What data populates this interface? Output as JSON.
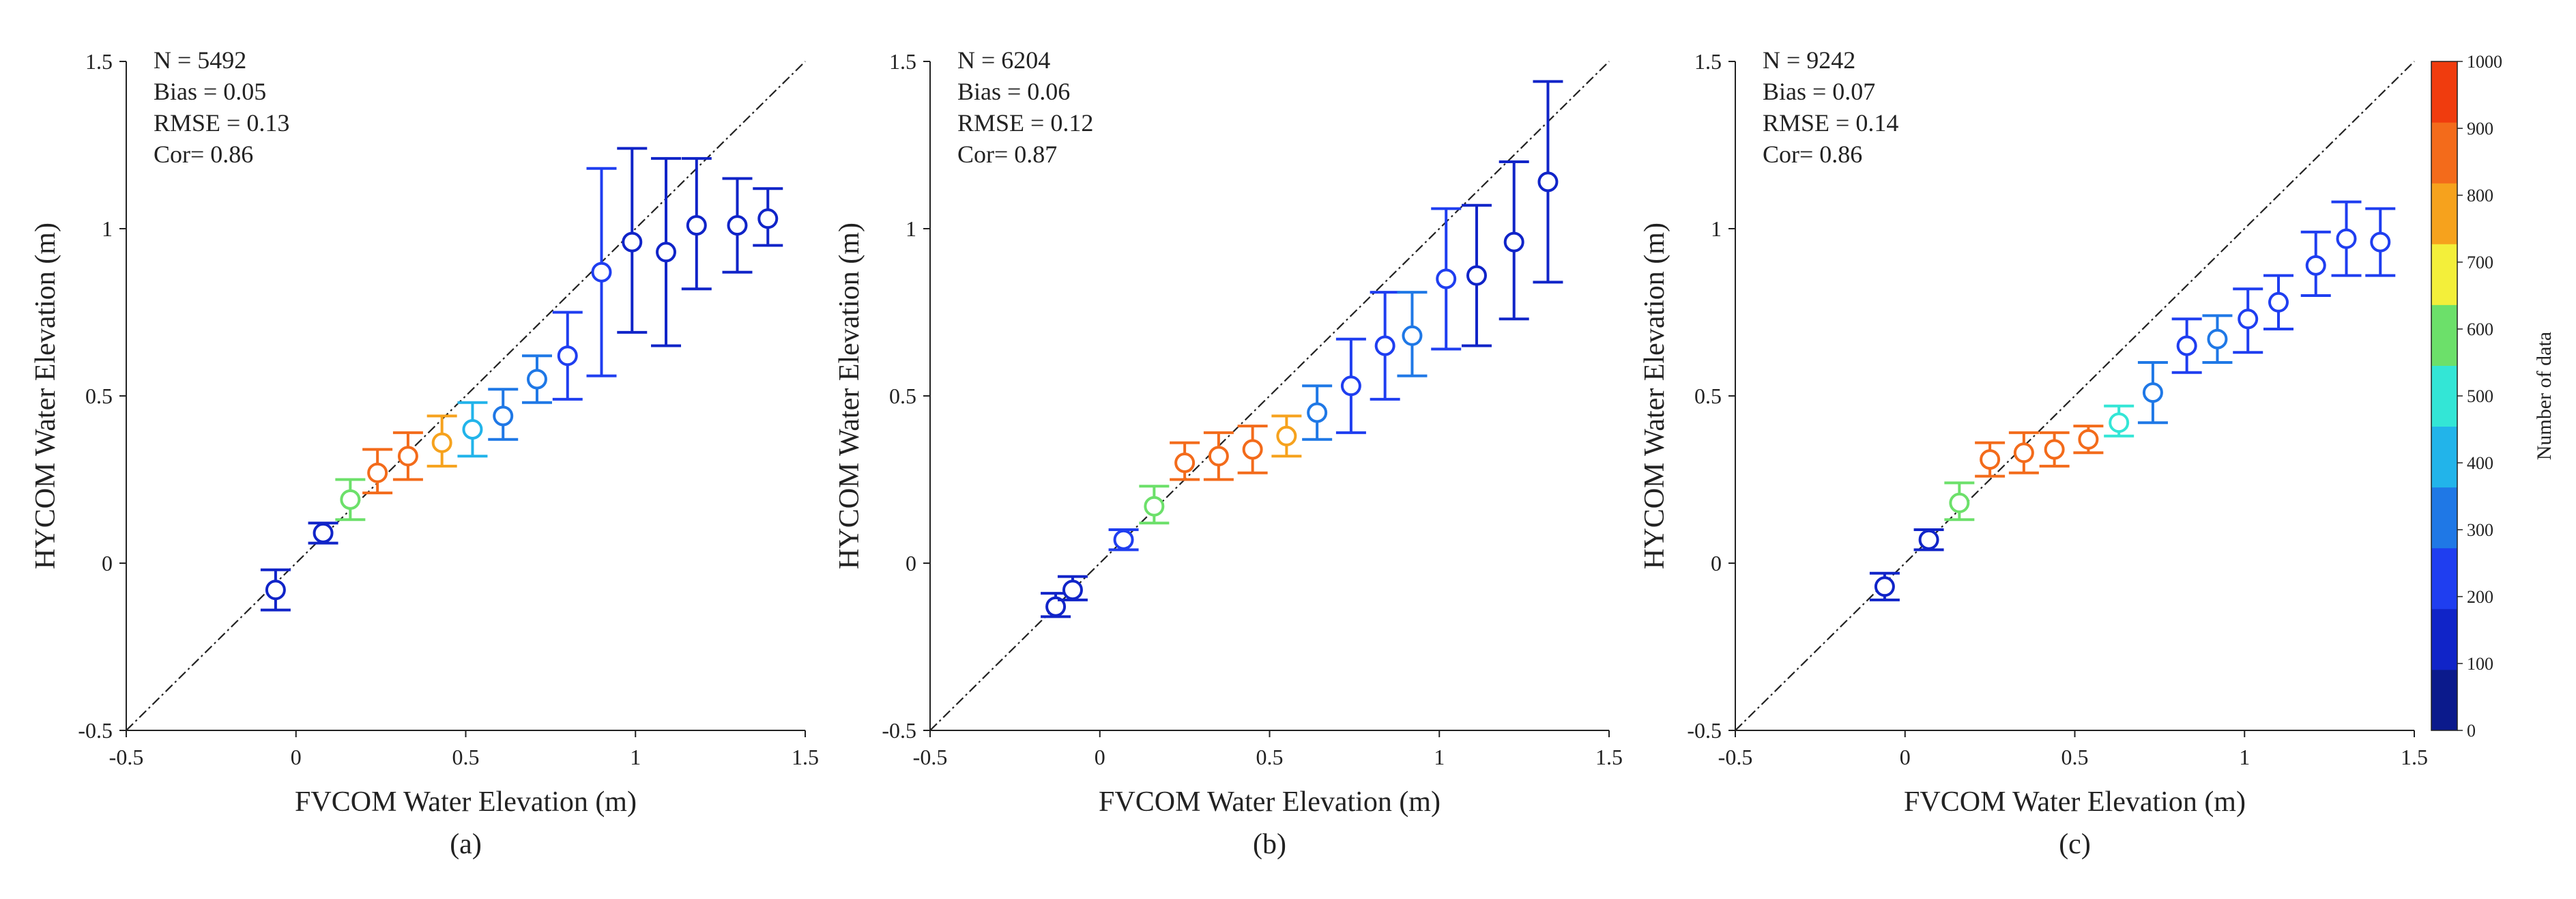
{
  "colorbar": {
    "label": "Number of data",
    "range": [
      0,
      1000
    ],
    "ticks": [
      "0",
      "100",
      "200",
      "300",
      "400",
      "500",
      "600",
      "700",
      "800",
      "900",
      "1000"
    ],
    "colors": [
      "#0b1a8c",
      "#1024c8",
      "#1f3ef0",
      "#1f78e6",
      "#22b4ea",
      "#33e6d6",
      "#6ce06a",
      "#f3ef3a",
      "#f6a21d",
      "#f36b1b",
      "#f03c0e"
    ]
  },
  "chart_data": [
    {
      "type": "scatter",
      "panel_label": "(a)",
      "xlabel": "FVCOM Water Elevation (m)",
      "ylabel": "HYCOM Water Elevation (m)",
      "xlim": [
        -0.5,
        1.5
      ],
      "ylim": [
        -0.5,
        1.5
      ],
      "xticks": [
        "-0.5",
        "0",
        "0.5",
        "1",
        "1.5"
      ],
      "yticks": [
        "-0.5",
        "0",
        "0.5",
        "1",
        "1.5"
      ],
      "stats": [
        "N = 5492",
        "Bias = 0.05",
        "RMSE = 0.13",
        "Cor= 0.86"
      ],
      "reference_line": "1:1",
      "points": [
        {
          "x": -0.06,
          "y": -0.08,
          "lo": -0.14,
          "hi": -0.02,
          "n": 150
        },
        {
          "x": 0.08,
          "y": 0.09,
          "lo": 0.06,
          "hi": 0.12,
          "n": 180
        },
        {
          "x": 0.16,
          "y": 0.19,
          "lo": 0.13,
          "hi": 0.25,
          "n": 650
        },
        {
          "x": 0.24,
          "y": 0.27,
          "lo": 0.21,
          "hi": 0.34,
          "n": 950
        },
        {
          "x": 0.33,
          "y": 0.32,
          "lo": 0.25,
          "hi": 0.39,
          "n": 930
        },
        {
          "x": 0.43,
          "y": 0.36,
          "lo": 0.29,
          "hi": 0.44,
          "n": 850
        },
        {
          "x": 0.52,
          "y": 0.4,
          "lo": 0.32,
          "hi": 0.48,
          "n": 480
        },
        {
          "x": 0.61,
          "y": 0.44,
          "lo": 0.37,
          "hi": 0.52,
          "n": 380
        },
        {
          "x": 0.71,
          "y": 0.55,
          "lo": 0.48,
          "hi": 0.62,
          "n": 320
        },
        {
          "x": 0.8,
          "y": 0.62,
          "lo": 0.49,
          "hi": 0.75,
          "n": 280
        },
        {
          "x": 0.9,
          "y": 0.87,
          "lo": 0.56,
          "hi": 1.18,
          "n": 200
        },
        {
          "x": 0.99,
          "y": 0.96,
          "lo": 0.69,
          "hi": 1.24,
          "n": 180
        },
        {
          "x": 1.09,
          "y": 0.93,
          "lo": 0.65,
          "hi": 1.21,
          "n": 180
        },
        {
          "x": 1.18,
          "y": 1.01,
          "lo": 0.82,
          "hi": 1.21,
          "n": 180
        },
        {
          "x": 1.3,
          "y": 1.01,
          "lo": 0.87,
          "hi": 1.15,
          "n": 180
        },
        {
          "x": 1.39,
          "y": 1.03,
          "lo": 0.95,
          "hi": 1.12,
          "n": 180
        }
      ]
    },
    {
      "type": "scatter",
      "panel_label": "(b)",
      "xlabel": "FVCOM Water Elevation (m)",
      "ylabel": "HYCOM Water Elevation (m)",
      "xlim": [
        -0.5,
        1.5
      ],
      "ylim": [
        -0.5,
        1.5
      ],
      "xticks": [
        "-0.5",
        "0",
        "0.5",
        "1",
        "1.5"
      ],
      "yticks": [
        "-0.5",
        "0",
        "0.5",
        "1",
        "1.5"
      ],
      "stats": [
        "N = 6204",
        "Bias = 0.06",
        "RMSE = 0.12",
        "Cor= 0.87"
      ],
      "reference_line": "1:1",
      "points": [
        {
          "x": -0.13,
          "y": -0.13,
          "lo": -0.16,
          "hi": -0.09,
          "n": 150
        },
        {
          "x": -0.08,
          "y": -0.08,
          "lo": -0.11,
          "hi": -0.04,
          "n": 150
        },
        {
          "x": 0.07,
          "y": 0.07,
          "lo": 0.04,
          "hi": 0.1,
          "n": 250
        },
        {
          "x": 0.16,
          "y": 0.17,
          "lo": 0.12,
          "hi": 0.23,
          "n": 650
        },
        {
          "x": 0.25,
          "y": 0.3,
          "lo": 0.25,
          "hi": 0.36,
          "n": 930
        },
        {
          "x": 0.35,
          "y": 0.32,
          "lo": 0.25,
          "hi": 0.39,
          "n": 930
        },
        {
          "x": 0.45,
          "y": 0.34,
          "lo": 0.27,
          "hi": 0.41,
          "n": 900
        },
        {
          "x": 0.55,
          "y": 0.38,
          "lo": 0.32,
          "hi": 0.44,
          "n": 850
        },
        {
          "x": 0.64,
          "y": 0.45,
          "lo": 0.37,
          "hi": 0.53,
          "n": 320
        },
        {
          "x": 0.74,
          "y": 0.53,
          "lo": 0.39,
          "hi": 0.67,
          "n": 230
        },
        {
          "x": 0.84,
          "y": 0.65,
          "lo": 0.49,
          "hi": 0.81,
          "n": 220
        },
        {
          "x": 0.92,
          "y": 0.68,
          "lo": 0.56,
          "hi": 0.81,
          "n": 300
        },
        {
          "x": 1.02,
          "y": 0.85,
          "lo": 0.64,
          "hi": 1.06,
          "n": 200
        },
        {
          "x": 1.11,
          "y": 0.86,
          "lo": 0.65,
          "hi": 1.07,
          "n": 190
        },
        {
          "x": 1.22,
          "y": 0.96,
          "lo": 0.73,
          "hi": 1.2,
          "n": 190
        },
        {
          "x": 1.32,
          "y": 1.14,
          "lo": 0.84,
          "hi": 1.44,
          "n": 190
        }
      ]
    },
    {
      "type": "scatter",
      "panel_label": "(c)",
      "xlabel": "FVCOM Water Elevation (m)",
      "ylabel": "HYCOM Water Elevation (m)",
      "xlim": [
        -0.5,
        1.5
      ],
      "ylim": [
        -0.5,
        1.5
      ],
      "xticks": [
        "-0.5",
        "0",
        "0.5",
        "1",
        "1.5"
      ],
      "yticks": [
        "-0.5",
        "0",
        "0.5",
        "1",
        "1.5"
      ],
      "stats": [
        "N = 9242",
        "Bias = 0.07",
        "RMSE = 0.14",
        "Cor= 0.86"
      ],
      "reference_line": "1:1",
      "points": [
        {
          "x": -0.06,
          "y": -0.07,
          "lo": -0.11,
          "hi": -0.03,
          "n": 170
        },
        {
          "x": 0.07,
          "y": 0.07,
          "lo": 0.04,
          "hi": 0.1,
          "n": 180
        },
        {
          "x": 0.16,
          "y": 0.18,
          "lo": 0.13,
          "hi": 0.24,
          "n": 620
        },
        {
          "x": 0.25,
          "y": 0.31,
          "lo": 0.26,
          "hi": 0.36,
          "n": 930
        },
        {
          "x": 0.35,
          "y": 0.33,
          "lo": 0.27,
          "hi": 0.39,
          "n": 930
        },
        {
          "x": 0.44,
          "y": 0.34,
          "lo": 0.29,
          "hi": 0.39,
          "n": 930
        },
        {
          "x": 0.54,
          "y": 0.37,
          "lo": 0.33,
          "hi": 0.41,
          "n": 930
        },
        {
          "x": 0.63,
          "y": 0.42,
          "lo": 0.38,
          "hi": 0.47,
          "n": 560
        },
        {
          "x": 0.73,
          "y": 0.51,
          "lo": 0.42,
          "hi": 0.6,
          "n": 310
        },
        {
          "x": 0.83,
          "y": 0.65,
          "lo": 0.57,
          "hi": 0.73,
          "n": 200
        },
        {
          "x": 0.92,
          "y": 0.67,
          "lo": 0.6,
          "hi": 0.74,
          "n": 300
        },
        {
          "x": 1.01,
          "y": 0.73,
          "lo": 0.63,
          "hi": 0.82,
          "n": 200
        },
        {
          "x": 1.1,
          "y": 0.78,
          "lo": 0.7,
          "hi": 0.86,
          "n": 200
        },
        {
          "x": 1.21,
          "y": 0.89,
          "lo": 0.8,
          "hi": 0.99,
          "n": 200
        },
        {
          "x": 1.3,
          "y": 0.97,
          "lo": 0.86,
          "hi": 1.08,
          "n": 200
        },
        {
          "x": 1.4,
          "y": 0.96,
          "lo": 0.86,
          "hi": 1.06,
          "n": 200
        }
      ]
    }
  ]
}
